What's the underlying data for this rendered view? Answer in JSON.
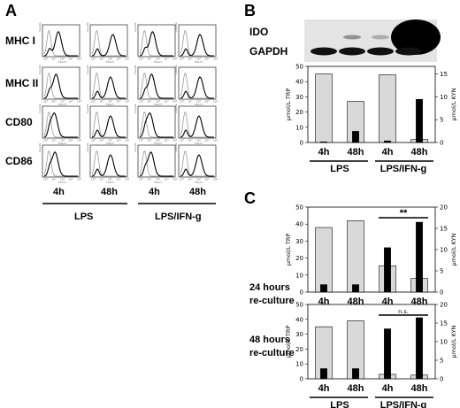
{
  "panels": {
    "A": {
      "letter": "A",
      "markers": [
        "MHC I",
        "MHC II",
        "CD80",
        "CD86"
      ],
      "timepoints": [
        "4h",
        "48h",
        "4h",
        "48h"
      ],
      "groups": [
        "LPS",
        "LPS/IFN-g"
      ],
      "hist_ylabel": "Counts",
      "hist_xlabel": "FL2-H",
      "hist_ticks": [
        "10⁰",
        "10¹",
        "10²",
        "10³",
        "10⁴"
      ]
    },
    "B": {
      "letter": "B",
      "blot": {
        "labels": [
          "IDO",
          "GAPDH"
        ],
        "ido_intensity": [
          0.0,
          0.12,
          0.08,
          1.0
        ]
      }
    },
    "C": {
      "letter": "C",
      "rows": [
        {
          "line1": "24 hours",
          "line2": "re-culture"
        },
        {
          "line1": "48 hours",
          "line2": "re-culture"
        }
      ]
    }
  },
  "chart_data": [
    {
      "type": "bar",
      "panel": "B",
      "categories": [
        "4h",
        "48h",
        "4h",
        "48h"
      ],
      "groups": [
        "LPS",
        "LPS/IFN-g"
      ],
      "ylabel_left": "μmol/L TRP",
      "ylabel_right": "μmol/L KYN",
      "left_ticks": [
        0,
        10,
        20,
        30,
        40,
        50
      ],
      "right_ticks": [
        0,
        5,
        10,
        15
      ],
      "ylim_left": [
        0,
        50
      ],
      "ylim_right": [
        0,
        16.67
      ],
      "series": [
        {
          "values": [
            45,
            27,
            44.5,
            2
          ],
          "axis": "left",
          "color": "#d9d9d9"
        },
        {
          "values": [
            0.2,
            2.5,
            0.4,
            9.5
          ],
          "axis": "right",
          "color": "#000000"
        }
      ]
    },
    {
      "type": "bar",
      "panel": "C",
      "row": "24 hours re-culture",
      "categories": [
        "4h",
        "48h",
        "4h",
        "48h"
      ],
      "ylabel_left": "μmol/L TRP",
      "ylabel_right": "μmol/L KYN",
      "left_ticks": [
        0,
        10,
        20,
        30,
        40,
        50
      ],
      "right_ticks": [
        0,
        5,
        10,
        15,
        20
      ],
      "ylim_left": [
        0,
        50
      ],
      "ylim_right": [
        0,
        20
      ],
      "annotation": "**",
      "series": [
        {
          "values": [
            38,
            42,
            15.5,
            8
          ],
          "axis": "left",
          "color": "#d9d9d9"
        },
        {
          "values": [
            1.8,
            1.8,
            10.5,
            16.5
          ],
          "axis": "right",
          "color": "#000000"
        }
      ]
    },
    {
      "type": "bar",
      "panel": "C",
      "row": "48 hours re-culture",
      "categories": [
        "4h",
        "48h",
        "4h",
        "48h"
      ],
      "groups": [
        "LPS",
        "LPS/IFN-g"
      ],
      "ylabel_left": "μmol/L TRP",
      "ylabel_right": "μmol/L KYN",
      "left_ticks": [
        0,
        10,
        20,
        30,
        40,
        50
      ],
      "right_ticks": [
        0,
        5,
        10,
        15,
        20
      ],
      "ylim_left": [
        0,
        50
      ],
      "ylim_right": [
        0,
        20
      ],
      "annotation": "n.s.",
      "series": [
        {
          "values": [
            35,
            39,
            3,
            2.5
          ],
          "axis": "left",
          "color": "#d9d9d9"
        },
        {
          "values": [
            2.8,
            2.8,
            13.5,
            16.5
          ],
          "axis": "right",
          "color": "#000000"
        }
      ]
    }
  ]
}
